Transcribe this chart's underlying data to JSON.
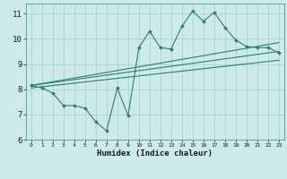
{
  "xlabel": "Humidex (Indice chaleur)",
  "bg_color": "#cdeaea",
  "line_color": "#2e7d6e",
  "grid_color": "#aacece",
  "xlim": [
    -0.5,
    23.5
  ],
  "ylim": [
    6,
    11.4
  ],
  "xticks": [
    0,
    1,
    2,
    3,
    4,
    5,
    6,
    7,
    8,
    9,
    10,
    11,
    12,
    13,
    14,
    15,
    16,
    17,
    18,
    19,
    20,
    21,
    22,
    23
  ],
  "yticks": [
    6,
    7,
    8,
    9,
    10,
    11
  ],
  "main_x": [
    0,
    1,
    2,
    3,
    4,
    5,
    6,
    7,
    8,
    9,
    10,
    11,
    12,
    13,
    14,
    15,
    16,
    17,
    18,
    19,
    20,
    21,
    22,
    23
  ],
  "main_y": [
    8.15,
    8.05,
    7.85,
    7.35,
    7.35,
    7.25,
    6.7,
    6.35,
    8.05,
    6.95,
    9.65,
    10.3,
    9.65,
    9.6,
    10.5,
    11.1,
    10.7,
    11.05,
    10.45,
    9.95,
    9.7,
    9.65,
    9.65,
    9.45
  ],
  "line1_x": [
    0,
    23
  ],
  "line1_y": [
    8.15,
    9.5
  ],
  "line2_x": [
    0,
    23
  ],
  "line2_y": [
    8.15,
    9.85
  ],
  "line3_x": [
    0,
    23
  ],
  "line3_y": [
    8.05,
    9.15
  ]
}
